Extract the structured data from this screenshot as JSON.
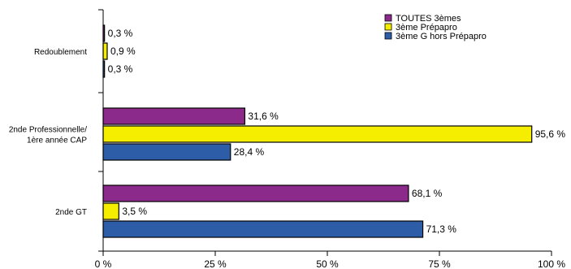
{
  "chart_data": {
    "type": "bar",
    "orientation": "horizontal",
    "categories": [
      {
        "lines": [
          "Redoublement"
        ]
      },
      {
        "lines": [
          "2nde Professionnelle/",
          "1ère année CAP"
        ]
      },
      {
        "lines": [
          "2nde GT"
        ]
      }
    ],
    "series": [
      {
        "name": "TOUTES  3èmes",
        "color": "#8B2A8B",
        "values": [
          0.3,
          31.6,
          68.1
        ],
        "labels": [
          "0,3 %",
          "31,6 %",
          "68,1 %"
        ]
      },
      {
        "name": "3ème Prépapro",
        "color": "#F5EE00",
        "values": [
          0.9,
          95.6,
          3.5
        ],
        "labels": [
          "0,9 %",
          "95,6 %",
          "3,5 %"
        ]
      },
      {
        "name": "3ème G hors Prépapro",
        "color": "#2E5DA8",
        "values": [
          0.3,
          28.4,
          71.3
        ],
        "labels": [
          "0,3 %",
          "28,4 %",
          "71,3 %"
        ]
      }
    ],
    "xlim": [
      0,
      100
    ],
    "ticks": [
      {
        "value": 0,
        "label": "0 %"
      },
      {
        "value": 25,
        "label": "25 %"
      },
      {
        "value": 50,
        "label": "50 %"
      },
      {
        "value": 75,
        "label": "75 %"
      },
      {
        "value": 100,
        "label": "100 %"
      }
    ],
    "grid": false,
    "legend_position": "top-right"
  }
}
